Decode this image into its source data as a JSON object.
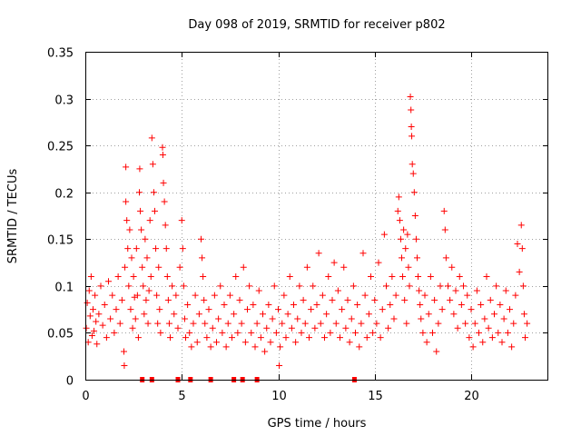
{
  "chart_data": {
    "type": "scatter",
    "title": "Day 098 of 2019, SRMTID for receiver p802",
    "xlabel": "GPS time / hours",
    "ylabel": "SRMTID / TECUs",
    "xlim": [
      0,
      24
    ],
    "ylim": [
      0,
      0.35
    ],
    "x_ticks": [
      0,
      5,
      10,
      15,
      20
    ],
    "y_ticks": [
      0,
      0.05,
      0.1,
      0.15,
      0.2,
      0.25,
      0.3,
      0.35
    ],
    "x_tick_labels": [
      "0",
      "5",
      "10",
      "15",
      "20"
    ],
    "y_tick_labels": [
      "0",
      "0.05",
      "0.1",
      "0.15",
      "0.2",
      "0.25",
      "0.3",
      "0.35"
    ],
    "grid": true,
    "marker": "plus",
    "color": "#ff0000",
    "series": [
      {
        "name": "SRMTID",
        "points": [
          [
            0.05,
            0.055
          ],
          [
            0.1,
            0.082
          ],
          [
            0.15,
            0.04
          ],
          [
            0.2,
            0.095
          ],
          [
            0.25,
            0.068
          ],
          [
            0.3,
            0.11
          ],
          [
            0.35,
            0.047
          ],
          [
            0.4,
            0.075
          ],
          [
            0.45,
            0.052
          ],
          [
            0.5,
            0.09
          ],
          [
            0.55,
            0.062
          ],
          [
            0.6,
            0.038
          ],
          [
            0.7,
            0.07
          ],
          [
            0.8,
            0.1
          ],
          [
            0.9,
            0.058
          ],
          [
            1.0,
            0.08
          ],
          [
            1.1,
            0.045
          ],
          [
            1.2,
            0.105
          ],
          [
            1.3,
            0.065
          ],
          [
            1.4,
            0.09
          ],
          [
            1.5,
            0.05
          ],
          [
            1.6,
            0.075
          ],
          [
            1.7,
            0.11
          ],
          [
            1.8,
            0.06
          ],
          [
            1.9,
            0.085
          ],
          [
            2.0,
            0.03
          ],
          [
            2.02,
            0.015
          ],
          [
            2.05,
            0.12
          ],
          [
            2.1,
            0.19
          ],
          [
            2.1,
            0.227
          ],
          [
            2.15,
            0.17
          ],
          [
            2.2,
            0.14
          ],
          [
            2.25,
            0.1
          ],
          [
            2.3,
            0.16
          ],
          [
            2.35,
            0.075
          ],
          [
            2.4,
            0.13
          ],
          [
            2.45,
            0.055
          ],
          [
            2.5,
            0.11
          ],
          [
            2.55,
            0.088
          ],
          [
            2.6,
            0.065
          ],
          [
            2.65,
            0.14
          ],
          [
            2.7,
            0.09
          ],
          [
            2.75,
            0.045
          ],
          [
            2.8,
            0.2
          ],
          [
            2.82,
            0.225
          ],
          [
            2.85,
            0.18
          ],
          [
            2.9,
            0.16
          ],
          [
            2.95,
            0.12
          ],
          [
            3.0,
            0.1
          ],
          [
            3.05,
            0.07
          ],
          [
            3.1,
            0.15
          ],
          [
            3.15,
            0.085
          ],
          [
            3.2,
            0.13
          ],
          [
            3.25,
            0.06
          ],
          [
            3.3,
            0.095
          ],
          [
            3.35,
            0.17
          ],
          [
            3.4,
            0.11
          ],
          [
            3.45,
            0.258
          ],
          [
            3.5,
            0.23
          ],
          [
            3.55,
            0.2
          ],
          [
            3.6,
            0.18
          ],
          [
            3.65,
            0.14
          ],
          [
            3.7,
            0.09
          ],
          [
            3.75,
            0.06
          ],
          [
            3.8,
            0.12
          ],
          [
            3.85,
            0.075
          ],
          [
            3.9,
            0.05
          ],
          [
            4.0,
            0.248
          ],
          [
            4.02,
            0.24
          ],
          [
            4.05,
            0.21
          ],
          [
            4.1,
            0.19
          ],
          [
            4.15,
            0.165
          ],
          [
            4.2,
            0.14
          ],
          [
            4.25,
            0.11
          ],
          [
            4.3,
            0.085
          ],
          [
            4.35,
            0.06
          ],
          [
            4.4,
            0.045
          ],
          [
            4.5,
            0.1
          ],
          [
            4.6,
            0.07
          ],
          [
            4.7,
            0.09
          ],
          [
            4.8,
            0.055
          ],
          [
            4.9,
            0.12
          ],
          [
            5.0,
            0.17
          ],
          [
            5.05,
            0.14
          ],
          [
            5.1,
            0.1
          ],
          [
            5.15,
            0.065
          ],
          [
            5.2,
            0.045
          ],
          [
            5.3,
            0.08
          ],
          [
            5.4,
            0.05
          ],
          [
            5.5,
            0.035
          ],
          [
            5.6,
            0.06
          ],
          [
            5.7,
            0.09
          ],
          [
            5.8,
            0.04
          ],
          [
            5.9,
            0.07
          ],
          [
            6.0,
            0.15
          ],
          [
            6.05,
            0.13
          ],
          [
            6.1,
            0.11
          ],
          [
            6.15,
            0.085
          ],
          [
            6.2,
            0.06
          ],
          [
            6.3,
            0.045
          ],
          [
            6.4,
            0.075
          ],
          [
            6.5,
            0.035
          ],
          [
            6.6,
            0.055
          ],
          [
            6.7,
            0.09
          ],
          [
            6.8,
            0.04
          ],
          [
            6.9,
            0.065
          ],
          [
            7.0,
            0.1
          ],
          [
            7.1,
            0.05
          ],
          [
            7.2,
            0.08
          ],
          [
            7.3,
            0.035
          ],
          [
            7.4,
            0.06
          ],
          [
            7.5,
            0.09
          ],
          [
            7.6,
            0.045
          ],
          [
            7.7,
            0.07
          ],
          [
            7.8,
            0.11
          ],
          [
            7.9,
            0.05
          ],
          [
            8.0,
            0.085
          ],
          [
            8.1,
            0.06
          ],
          [
            8.2,
            0.12
          ],
          [
            8.3,
            0.04
          ],
          [
            8.4,
            0.075
          ],
          [
            8.5,
            0.1
          ],
          [
            8.6,
            0.05
          ],
          [
            8.7,
            0.08
          ],
          [
            8.8,
            0.035
          ],
          [
            8.9,
            0.06
          ],
          [
            9.0,
            0.095
          ],
          [
            9.1,
            0.045
          ],
          [
            9.2,
            0.07
          ],
          [
            9.3,
            0.03
          ],
          [
            9.4,
            0.055
          ],
          [
            9.5,
            0.08
          ],
          [
            9.6,
            0.04
          ],
          [
            9.7,
            0.065
          ],
          [
            9.8,
            0.1
          ],
          [
            9.9,
            0.05
          ],
          [
            10.0,
            0.075
          ],
          [
            10.05,
            0.015
          ],
          [
            10.1,
            0.035
          ],
          [
            10.2,
            0.06
          ],
          [
            10.3,
            0.09
          ],
          [
            10.4,
            0.045
          ],
          [
            10.5,
            0.07
          ],
          [
            10.6,
            0.11
          ],
          [
            10.7,
            0.055
          ],
          [
            10.8,
            0.08
          ],
          [
            10.9,
            0.04
          ],
          [
            11.0,
            0.065
          ],
          [
            11.1,
            0.1
          ],
          [
            11.2,
            0.05
          ],
          [
            11.3,
            0.085
          ],
          [
            11.4,
            0.06
          ],
          [
            11.5,
            0.12
          ],
          [
            11.6,
            0.045
          ],
          [
            11.7,
            0.075
          ],
          [
            11.8,
            0.1
          ],
          [
            11.9,
            0.055
          ],
          [
            12.0,
            0.08
          ],
          [
            12.1,
            0.135
          ],
          [
            12.2,
            0.06
          ],
          [
            12.3,
            0.09
          ],
          [
            12.4,
            0.045
          ],
          [
            12.5,
            0.07
          ],
          [
            12.6,
            0.11
          ],
          [
            12.7,
            0.05
          ],
          [
            12.8,
            0.085
          ],
          [
            12.9,
            0.125
          ],
          [
            13.0,
            0.06
          ],
          [
            13.1,
            0.095
          ],
          [
            13.2,
            0.045
          ],
          [
            13.3,
            0.075
          ],
          [
            13.4,
            0.12
          ],
          [
            13.5,
            0.055
          ],
          [
            13.6,
            0.085
          ],
          [
            13.7,
            0.04
          ],
          [
            13.8,
            0.065
          ],
          [
            13.9,
            0.1
          ],
          [
            14.0,
            0.05
          ],
          [
            14.1,
            0.08
          ],
          [
            14.2,
            0.035
          ],
          [
            14.3,
            0.06
          ],
          [
            14.4,
            0.135
          ],
          [
            14.5,
            0.09
          ],
          [
            14.6,
            0.045
          ],
          [
            14.7,
            0.07
          ],
          [
            14.8,
            0.11
          ],
          [
            14.9,
            0.05
          ],
          [
            15.0,
            0.085
          ],
          [
            15.1,
            0.06
          ],
          [
            15.2,
            0.125
          ],
          [
            15.3,
            0.045
          ],
          [
            15.4,
            0.075
          ],
          [
            15.5,
            0.155
          ],
          [
            15.6,
            0.1
          ],
          [
            15.7,
            0.055
          ],
          [
            15.8,
            0.08
          ],
          [
            15.9,
            0.11
          ],
          [
            16.0,
            0.065
          ],
          [
            16.1,
            0.09
          ],
          [
            16.2,
            0.18
          ],
          [
            16.25,
            0.195
          ],
          [
            16.3,
            0.17
          ],
          [
            16.35,
            0.15
          ],
          [
            16.4,
            0.13
          ],
          [
            16.45,
            0.11
          ],
          [
            16.5,
            0.16
          ],
          [
            16.55,
            0.085
          ],
          [
            16.6,
            0.14
          ],
          [
            16.65,
            0.06
          ],
          [
            16.7,
            0.155
          ],
          [
            16.75,
            0.12
          ],
          [
            16.8,
            0.1
          ],
          [
            16.85,
            0.302
          ],
          [
            16.88,
            0.288
          ],
          [
            16.9,
            0.27
          ],
          [
            16.92,
            0.26
          ],
          [
            16.95,
            0.23
          ],
          [
            17.0,
            0.22
          ],
          [
            17.05,
            0.2
          ],
          [
            17.1,
            0.175
          ],
          [
            17.15,
            0.15
          ],
          [
            17.2,
            0.13
          ],
          [
            17.25,
            0.11
          ],
          [
            17.3,
            0.095
          ],
          [
            17.35,
            0.08
          ],
          [
            17.4,
            0.065
          ],
          [
            17.5,
            0.05
          ],
          [
            17.6,
            0.09
          ],
          [
            17.7,
            0.04
          ],
          [
            17.8,
            0.07
          ],
          [
            17.9,
            0.11
          ],
          [
            18.0,
            0.05
          ],
          [
            18.1,
            0.085
          ],
          [
            18.2,
            0.03
          ],
          [
            18.3,
            0.06
          ],
          [
            18.4,
            0.1
          ],
          [
            18.5,
            0.075
          ],
          [
            18.6,
            0.18
          ],
          [
            18.65,
            0.16
          ],
          [
            18.7,
            0.13
          ],
          [
            18.8,
            0.1
          ],
          [
            18.9,
            0.085
          ],
          [
            19.0,
            0.12
          ],
          [
            19.1,
            0.07
          ],
          [
            19.2,
            0.095
          ],
          [
            19.3,
            0.055
          ],
          [
            19.4,
            0.11
          ],
          [
            19.5,
            0.08
          ],
          [
            19.6,
            0.1
          ],
          [
            19.7,
            0.06
          ],
          [
            19.8,
            0.09
          ],
          [
            19.9,
            0.045
          ],
          [
            20.0,
            0.075
          ],
          [
            20.1,
            0.035
          ],
          [
            20.2,
            0.06
          ],
          [
            20.3,
            0.095
          ],
          [
            20.4,
            0.05
          ],
          [
            20.5,
            0.08
          ],
          [
            20.6,
            0.04
          ],
          [
            20.7,
            0.065
          ],
          [
            20.8,
            0.11
          ],
          [
            20.9,
            0.055
          ],
          [
            21.0,
            0.085
          ],
          [
            21.1,
            0.045
          ],
          [
            21.2,
            0.07
          ],
          [
            21.3,
            0.1
          ],
          [
            21.4,
            0.05
          ],
          [
            21.5,
            0.08
          ],
          [
            21.6,
            0.04
          ],
          [
            21.7,
            0.065
          ],
          [
            21.8,
            0.095
          ],
          [
            21.9,
            0.05
          ],
          [
            22.0,
            0.075
          ],
          [
            22.1,
            0.035
          ],
          [
            22.2,
            0.06
          ],
          [
            22.3,
            0.09
          ],
          [
            22.4,
            0.145
          ],
          [
            22.5,
            0.115
          ],
          [
            22.6,
            0.165
          ],
          [
            22.65,
            0.14
          ],
          [
            22.7,
            0.1
          ],
          [
            22.75,
            0.07
          ],
          [
            22.8,
            0.045
          ],
          [
            22.9,
            0.06
          ]
        ]
      }
    ],
    "gap_markers_x": [
      2.95,
      3.45,
      4.8,
      5.45,
      6.5,
      7.7,
      8.15,
      8.9,
      13.95
    ]
  }
}
